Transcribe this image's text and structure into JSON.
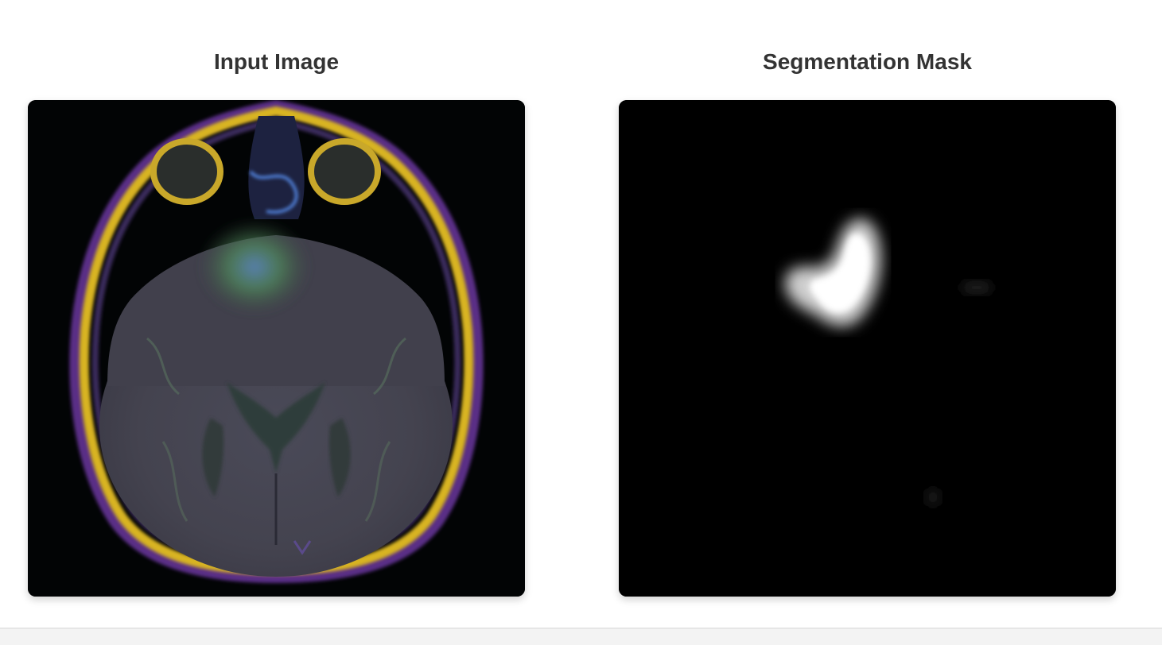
{
  "panels": {
    "input": {
      "title": "Input Image",
      "image_icon": "brain-mri-scan"
    },
    "mask": {
      "title": "Segmentation Mask",
      "image_icon": "segmentation-mask"
    }
  },
  "colors": {
    "title_text": "#333333",
    "card_background": "#000000",
    "page_background": "#ffffff"
  }
}
